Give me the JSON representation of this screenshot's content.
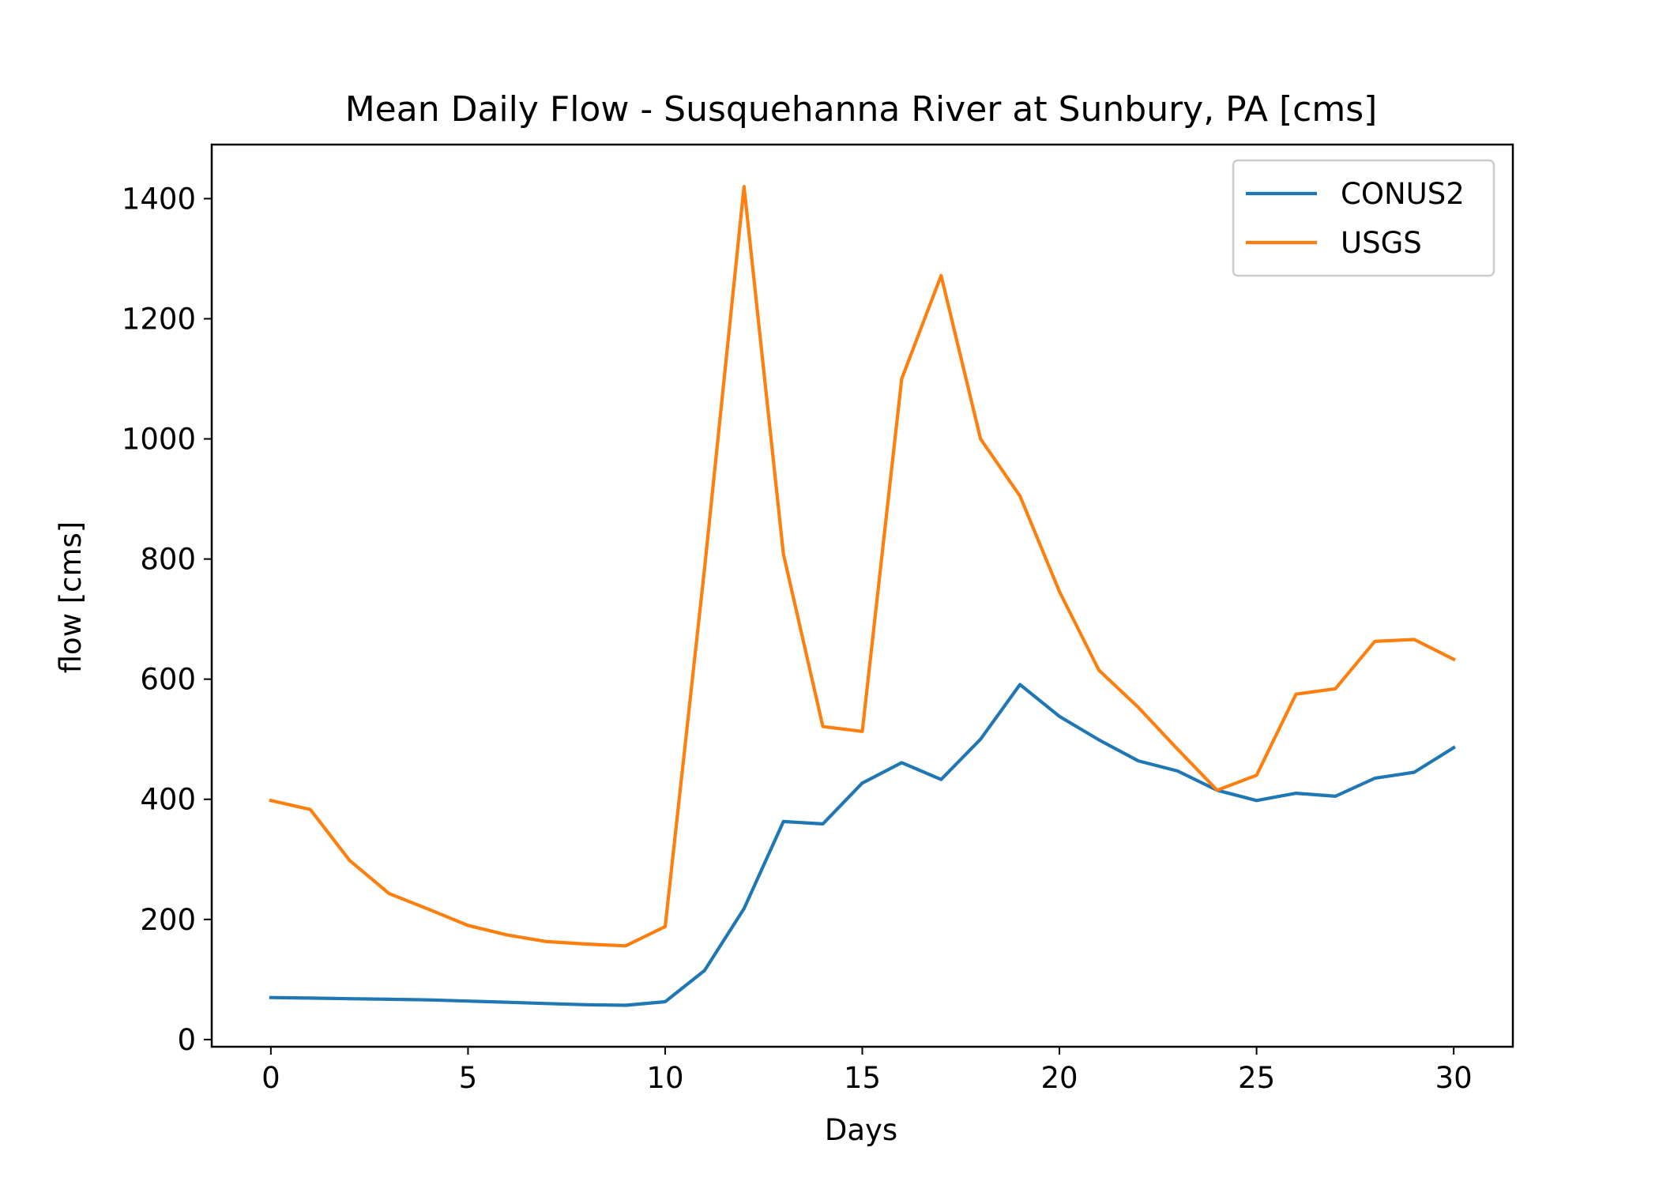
{
  "chart_data": {
    "type": "line",
    "title": "Mean Daily Flow - Susquehanna River at Sunbury, PA [cms]",
    "xlabel": "Days",
    "ylabel": "flow [cms]",
    "xlim": [
      -1.5,
      31.5
    ],
    "ylim": [
      -12,
      1490
    ],
    "xticks": [
      0,
      5,
      10,
      15,
      20,
      25,
      30
    ],
    "yticks": [
      0,
      200,
      400,
      600,
      800,
      1000,
      1200,
      1400
    ],
    "legend_position": "top-right",
    "x": [
      0,
      1,
      2,
      3,
      4,
      5,
      6,
      7,
      8,
      9,
      10,
      11,
      12,
      13,
      14,
      15,
      16,
      17,
      18,
      19,
      20,
      21,
      22,
      23,
      24,
      25,
      26,
      27,
      28,
      29,
      30
    ],
    "series": [
      {
        "name": "CONUS2",
        "color": "#1f77b4",
        "values": [
          70,
          69,
          68,
          67,
          66,
          64,
          62,
          60,
          58,
          57,
          63,
          115,
          218,
          363,
          359,
          427,
          461,
          433,
          500,
          591,
          538,
          499,
          464,
          447,
          415,
          398,
          410,
          405,
          435,
          445,
          486
        ]
      },
      {
        "name": "USGS",
        "color": "#ff7f0e",
        "values": [
          398,
          383,
          298,
          243,
          217,
          190,
          174,
          163,
          159,
          156,
          188,
          785,
          1420,
          808,
          521,
          513,
          1100,
          1272,
          1000,
          905,
          746,
          615,
          553,
          483,
          415,
          440,
          575,
          584,
          663,
          666,
          633
        ]
      }
    ]
  }
}
